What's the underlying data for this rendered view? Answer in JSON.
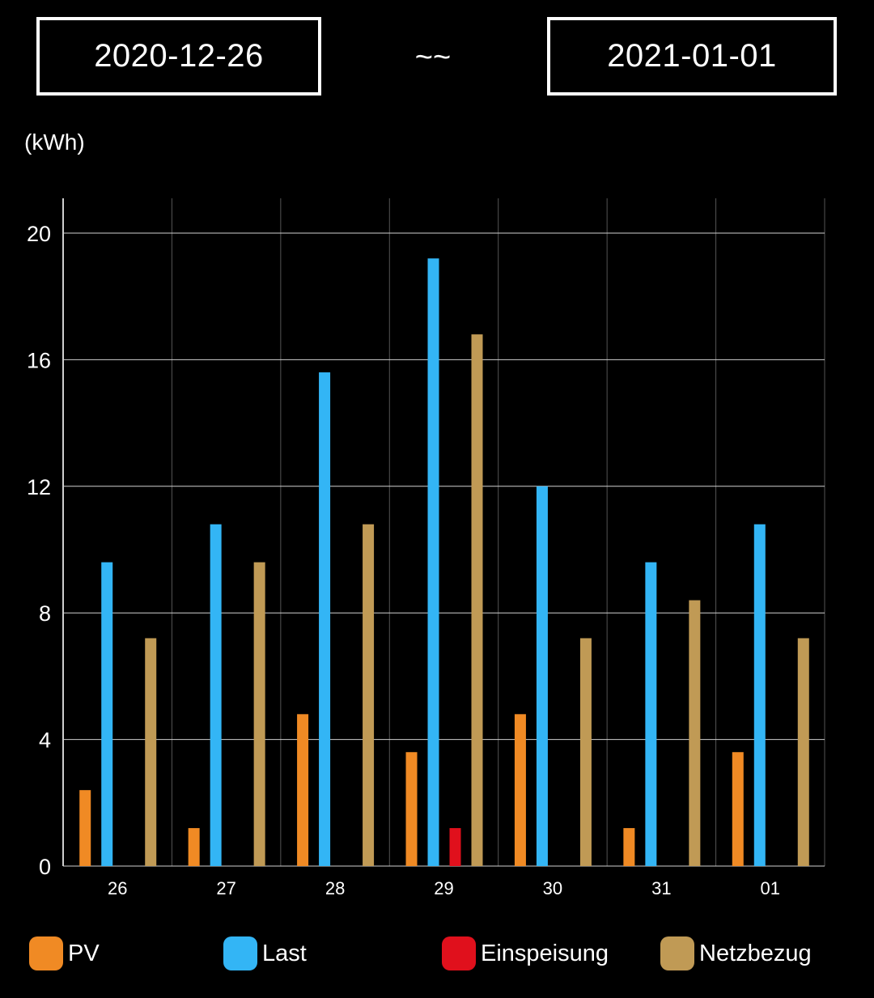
{
  "date_range": {
    "start": "2020-12-26",
    "separator": "~~",
    "end": "2021-01-01"
  },
  "chart_data": {
    "type": "bar",
    "unit_label": "(kWh)",
    "categories": [
      "26",
      "27",
      "28",
      "29",
      "30",
      "31",
      "01"
    ],
    "ylim": [
      0,
      20
    ],
    "yticks": [
      0,
      4,
      8,
      12,
      16,
      20
    ],
    "grid": true,
    "legend_position": "bottom",
    "series": [
      {
        "name": "PV",
        "color": "#f08a24",
        "values": [
          2.4,
          1.2,
          4.8,
          3.6,
          4.8,
          1.2,
          3.6
        ]
      },
      {
        "name": "Last",
        "color": "#33b5f5",
        "values": [
          9.6,
          10.8,
          15.6,
          19.2,
          12.0,
          9.6,
          10.8
        ]
      },
      {
        "name": "Einspeisung",
        "color": "#e0101c",
        "values": [
          0,
          0,
          0,
          1.2,
          0,
          0,
          0
        ]
      },
      {
        "name": "Netzbezug",
        "color": "#c09a55",
        "values": [
          7.2,
          9.6,
          10.8,
          16.8,
          7.2,
          8.4,
          7.2
        ]
      }
    ]
  }
}
